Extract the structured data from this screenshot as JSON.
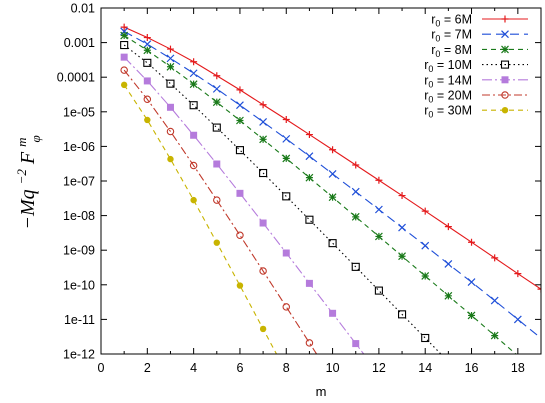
{
  "chart_data": {
    "type": "line",
    "title": "",
    "xlabel": "m",
    "ylabel_tex": {
      "lead": "−Mq",
      "sup1": "−2",
      "F": "F",
      "sup2": "m",
      "sub2": "φ"
    },
    "xlim": [
      0,
      19
    ],
    "ylim": [
      1e-12,
      0.01
    ],
    "yscale": "log",
    "x_ticks": [
      "0",
      "2",
      "4",
      "6",
      "8",
      "10",
      "12",
      "14",
      "16",
      "18"
    ],
    "x_tick_values": [
      0,
      2,
      4,
      6,
      8,
      10,
      12,
      14,
      16,
      18
    ],
    "y_ticks": [
      "1e-12",
      "1e-11",
      "1e-10",
      "1e-09",
      "1e-08",
      "1e-07",
      "1e-06",
      "1e-05",
      "0.0001",
      "0.001",
      "0.01"
    ],
    "y_tick_values": [
      1e-12,
      1e-11,
      1e-10,
      1e-09,
      1e-08,
      1e-07,
      1e-06,
      1e-05,
      0.0001,
      0.001,
      0.01
    ],
    "legend_position": "top-right",
    "series": [
      {
        "name": "r₀ = 6M",
        "name_base": "r",
        "name_sub": "0",
        "name_rest": " = 6M",
        "color": "#e41a1c",
        "dash": "",
        "marker": "plus",
        "x": [
          1,
          2,
          3,
          4,
          5,
          6,
          7,
          8,
          9,
          10,
          11,
          12,
          13,
          14,
          15,
          16,
          17,
          18,
          19
        ],
        "y": [
          0.0028,
          0.0014,
          0.00065,
          0.00028,
          0.00011,
          4.3e-05,
          1.6e-05,
          6e-06,
          2.2e-06,
          8e-07,
          2.9e-07,
          1.05e-07,
          3.8e-08,
          1.35e-08,
          4.8e-09,
          1.7e-09,
          6e-10,
          2.1e-10,
          7.5e-11
        ]
      },
      {
        "name": "r₀ = 7M",
        "name_base": "r",
        "name_sub": "0",
        "name_rest": " = 7M",
        "color": "#1f4fd8",
        "dash": "9,5",
        "marker": "cross",
        "x": [
          1,
          2,
          3,
          4,
          5,
          6,
          7,
          8,
          9,
          10,
          11,
          12,
          13,
          14,
          15,
          16,
          17,
          18
        ],
        "y": [
          0.0021,
          0.0009,
          0.00035,
          0.00013,
          4.6e-05,
          1.55e-05,
          5.1e-06,
          1.65e-06,
          5.2e-07,
          1.6e-07,
          4.9e-08,
          1.5e-08,
          4.5e-09,
          1.35e-09,
          4e-10,
          1.2e-10,
          3.5e-11,
          1e-11
        ]
      },
      {
        "name": "r₀ = 8M",
        "name_base": "r",
        "name_sub": "0",
        "name_rest": " = 8M",
        "color": "#1a7a1a",
        "dash": "5,4",
        "marker": "star",
        "x": [
          1,
          2,
          3,
          4,
          5,
          6,
          7,
          8,
          9,
          10,
          11,
          12,
          13,
          14,
          15,
          16,
          17
        ],
        "y": [
          0.0016,
          0.0006,
          0.0002,
          6.3e-05,
          1.9e-05,
          5.6e-06,
          1.6e-06,
          4.5e-07,
          1.25e-07,
          3.4e-08,
          9.2e-09,
          2.5e-09,
          6.7e-10,
          1.8e-10,
          4.8e-11,
          1.3e-11,
          3.4e-12
        ]
      },
      {
        "name": "r₀ = 10M",
        "name_base": "r",
        "name_sub": "0",
        "name_rest": " = 10M",
        "color": "#000000",
        "dash": "1.5,3",
        "marker": "square",
        "x": [
          1,
          2,
          3,
          4,
          5,
          6,
          7,
          8,
          9,
          10,
          11,
          12,
          13,
          14
        ],
        "y": [
          0.00085,
          0.00026,
          6.5e-05,
          1.55e-05,
          3.5e-06,
          7.8e-07,
          1.7e-07,
          3.6e-08,
          7.6e-09,
          1.6e-09,
          3.3e-10,
          6.8e-11,
          1.4e-11,
          2.9e-12
        ]
      },
      {
        "name": "r₀ = 14M",
        "name_base": "r",
        "name_sub": "0",
        "name_rest": " = 14M",
        "color": "#b57bdc",
        "dash": "10,3,2,3",
        "marker": "fsquare",
        "x": [
          1,
          2,
          3,
          4,
          5,
          6,
          7,
          8,
          9,
          10,
          11
        ],
        "y": [
          0.00038,
          7.8e-05,
          1.35e-05,
          2.1e-06,
          3.1e-07,
          4.4e-08,
          6.1e-09,
          8.3e-10,
          1.1e-10,
          1.5e-11,
          2e-12
        ]
      },
      {
        "name": "r₀ = 20M",
        "name_base": "r",
        "name_sub": "0",
        "name_rest": " = 20M",
        "color": "#c0392b",
        "dash": "8,3,2,3",
        "marker": "circle",
        "x": [
          1,
          2,
          3,
          4,
          5,
          6,
          7,
          8,
          9
        ],
        "y": [
          0.00016,
          2.3e-05,
          2.7e-06,
          2.8e-07,
          2.8e-08,
          2.7e-09,
          2.5e-10,
          2.3e-11,
          2.1e-12
        ]
      },
      {
        "name": "r₀ = 30M",
        "name_base": "r",
        "name_sub": "0",
        "name_rest": " = 30M",
        "color": "#c8b400",
        "dash": "5,4",
        "marker": "fcircle",
        "x": [
          1,
          2,
          3,
          4,
          5,
          6,
          7
        ],
        "y": [
          6e-05,
          5.8e-06,
          4.3e-07,
          2.8e-08,
          1.65e-09,
          9.5e-11,
          5.3e-12
        ]
      }
    ]
  }
}
